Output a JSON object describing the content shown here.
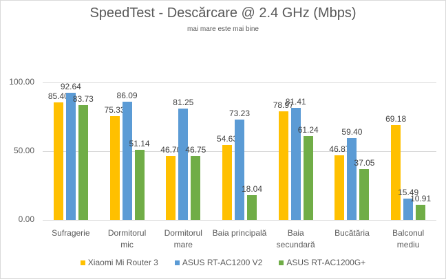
{
  "chart_data": {
    "type": "bar",
    "title": "SpeedTest - Descărcare @ 2.4 GHz (Mbps)",
    "subtitle": "mai mare este mai bine",
    "xlabel": "",
    "ylabel": "",
    "ylim": [
      0,
      100
    ],
    "yticks": [
      "0.00",
      "50.00",
      "100.00"
    ],
    "grid": true,
    "legend_position": "bottom",
    "categories": [
      "Sufragerie",
      "Dormitorul mic",
      "Dormitorul mare",
      "Baia principală",
      "Baia secundară",
      "Bucătăria",
      "Balconul mediu"
    ],
    "series": [
      {
        "name": "Xiaomi Mi Router 3",
        "color": "#ffc000",
        "values": [
          85.4,
          75.33,
          46.7,
          54.63,
          78.97,
          46.87,
          69.18
        ]
      },
      {
        "name": "ASUS RT-AC1200 V2",
        "color": "#5b9bd5",
        "values": [
          92.64,
          86.09,
          81.25,
          73.23,
          81.41,
          59.4,
          15.49
        ]
      },
      {
        "name": "ASUS RT-AC1200G+",
        "color": "#70ad47",
        "values": [
          83.73,
          51.14,
          46.75,
          18.04,
          61.24,
          37.05,
          10.91
        ]
      }
    ]
  },
  "category_lines": [
    [
      "Sufragerie"
    ],
    [
      "Dormitorul",
      "mic"
    ],
    [
      "Dormitorul",
      "mare"
    ],
    [
      "Baia principală"
    ],
    [
      "Baia",
      "secundară"
    ],
    [
      "Bucătăria"
    ],
    [
      "Balconul",
      "mediu"
    ]
  ]
}
